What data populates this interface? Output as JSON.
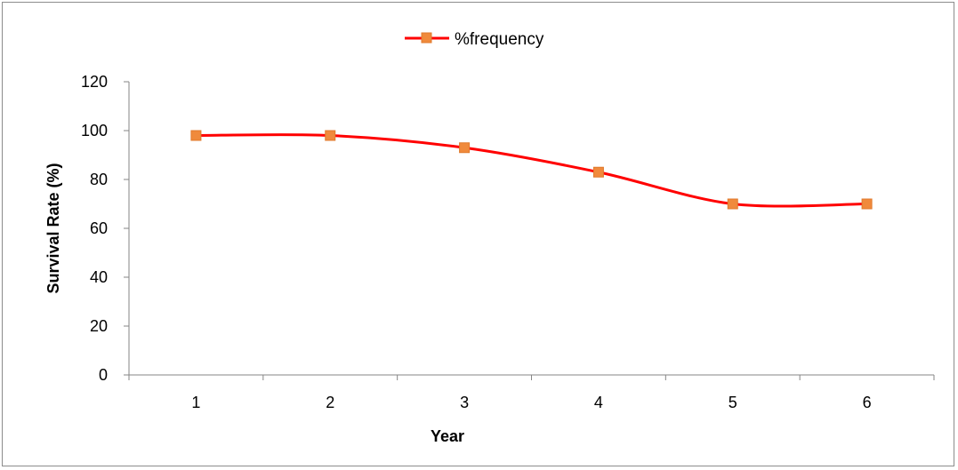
{
  "chart_data": {
    "type": "line",
    "title": "",
    "xlabel": "Year",
    "ylabel": "Survival Rate (%)",
    "categories": [
      "1",
      "2",
      "3",
      "4",
      "5",
      "6"
    ],
    "series": [
      {
        "name": "%frequency",
        "values": [
          98,
          98,
          93,
          83,
          70,
          70
        ],
        "line_color": "#ff0000",
        "marker_color": "#f08a3c",
        "marker": "square"
      }
    ],
    "ylim": [
      0,
      120
    ],
    "yticks": [
      "0",
      "20",
      "40",
      "60",
      "80",
      "100",
      "120"
    ],
    "grid": false,
    "legend_position": "top"
  }
}
